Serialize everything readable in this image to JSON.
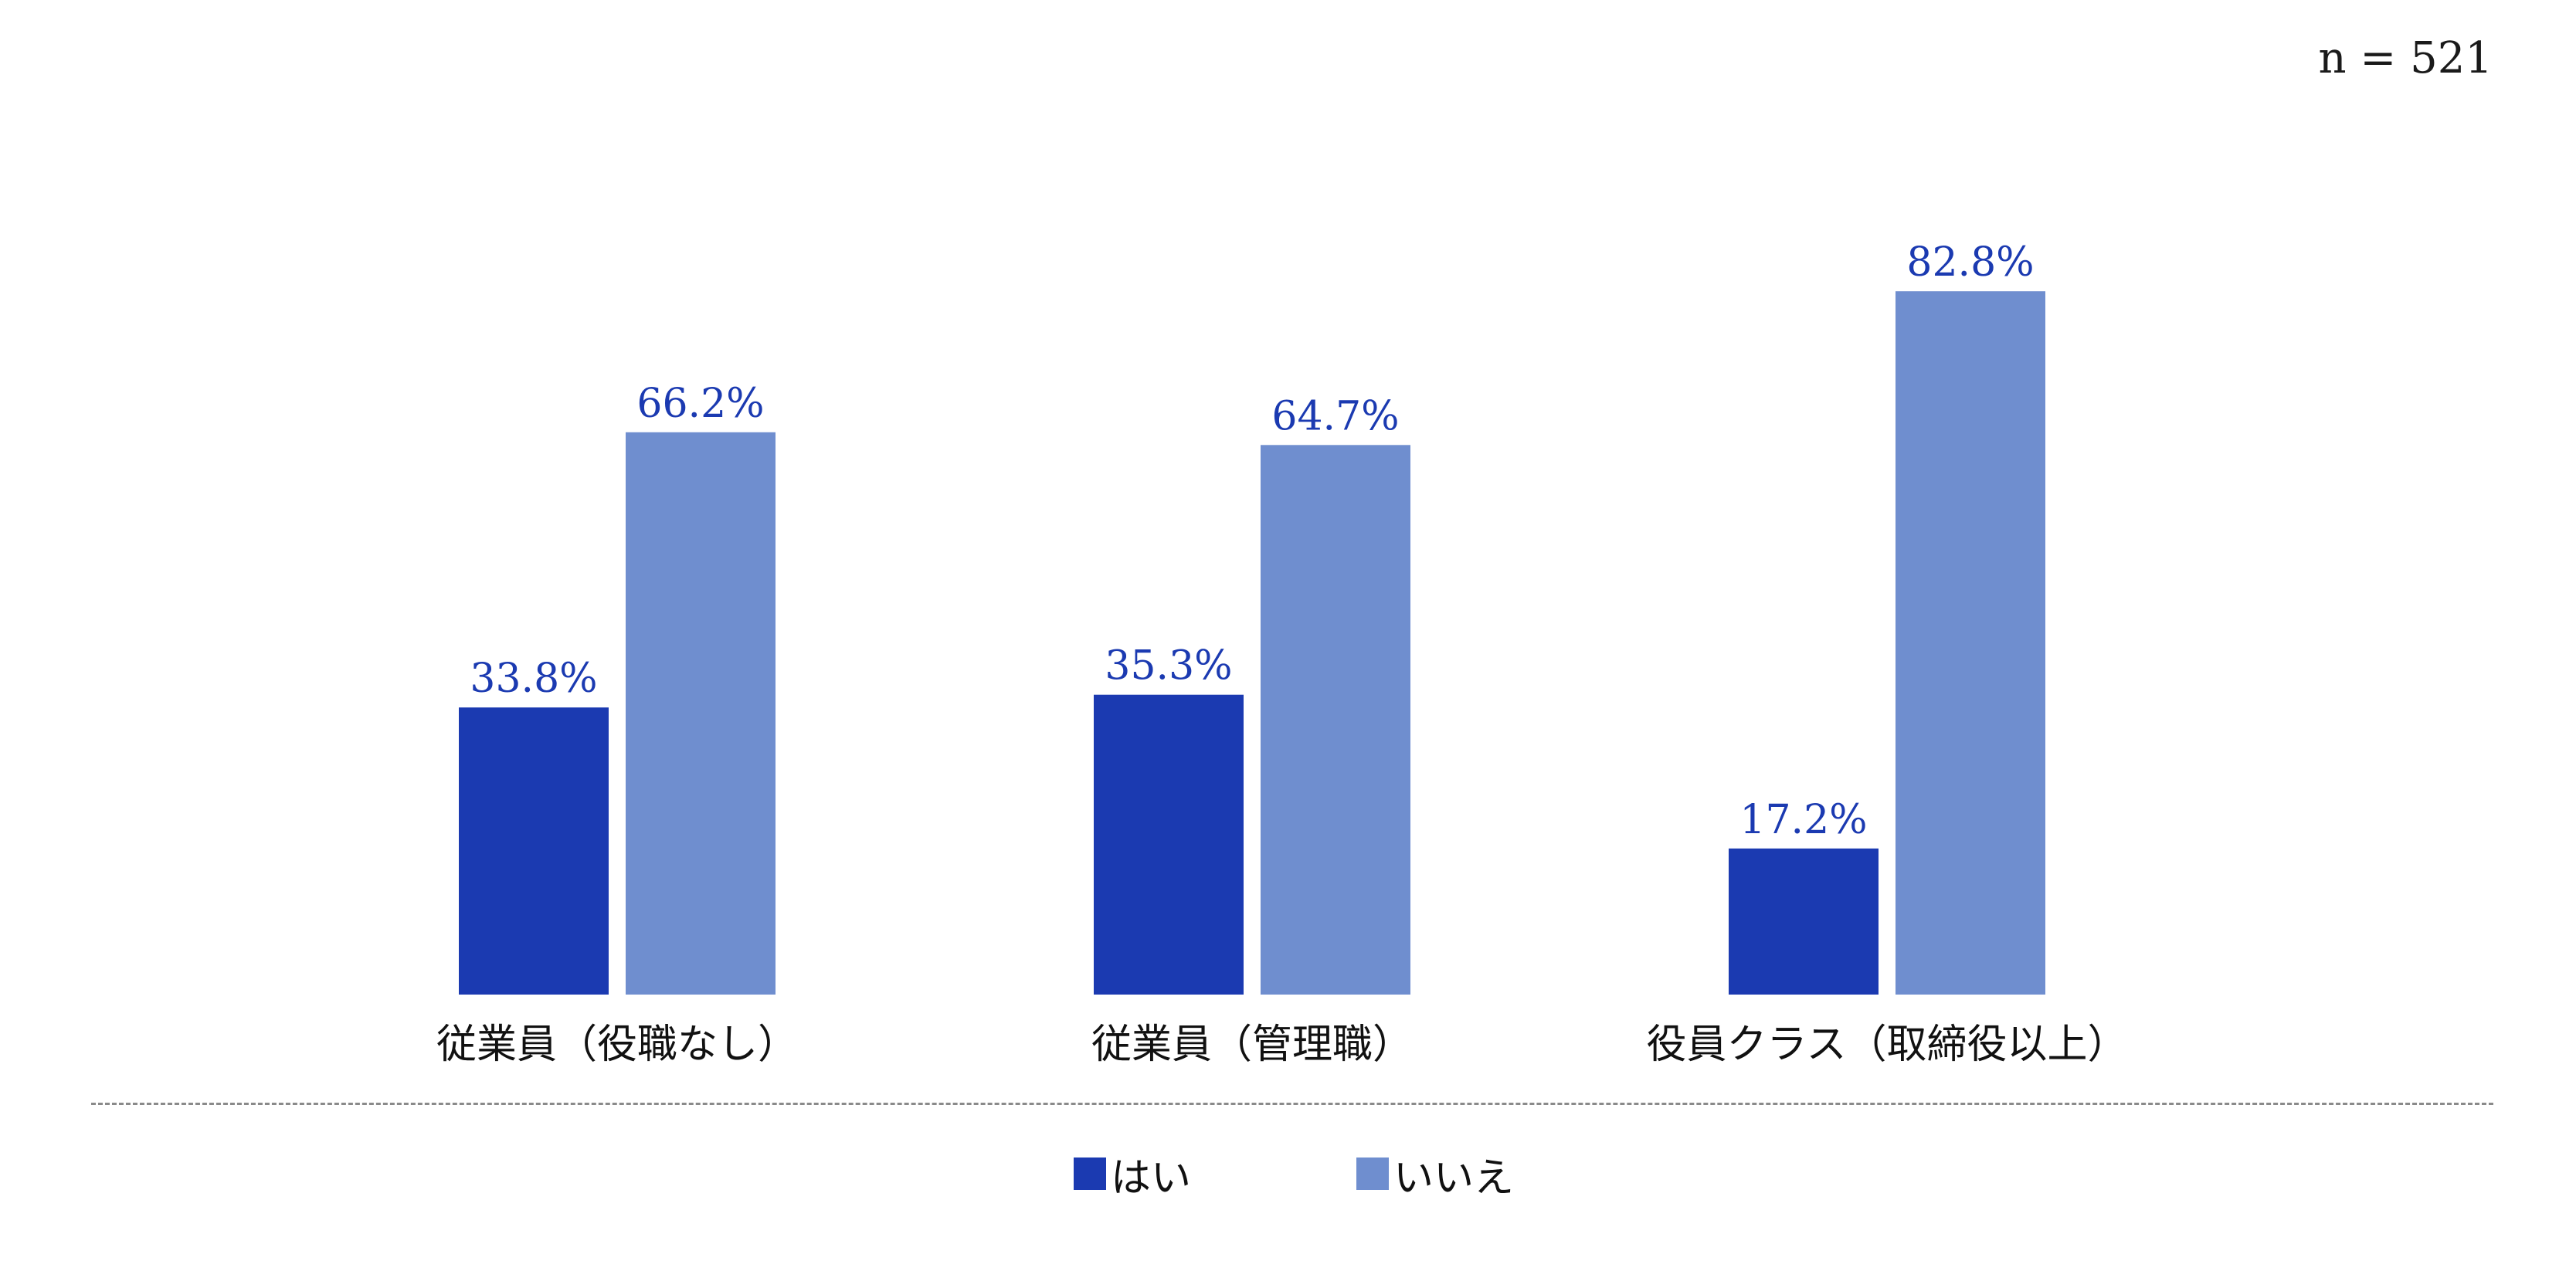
{
  "sample_note": "n = 521",
  "legend": [
    {
      "label": "はい",
      "color": "#1b3ab1"
    },
    {
      "label": "いいえ",
      "color": "#6f8ecf"
    }
  ],
  "chart_data": {
    "type": "bar",
    "categories": [
      "従業員（役職なし）",
      "従業員（管理職）",
      "役員クラス（取締役以上）"
    ],
    "series": [
      {
        "name": "はい",
        "values": [
          33.8,
          35.3,
          17.2
        ],
        "labels": [
          "33.8%",
          "35.3%",
          "17.2%"
        ],
        "color": "#1b3ab1"
      },
      {
        "name": "いいえ",
        "values": [
          66.2,
          64.7,
          82.8
        ],
        "labels": [
          "66.2%",
          "64.7%",
          "82.8%"
        ],
        "color": "#6f8ecf"
      }
    ],
    "value_label_color": "#1b3ab1",
    "grid": false,
    "legend_position": "bottom-center"
  }
}
